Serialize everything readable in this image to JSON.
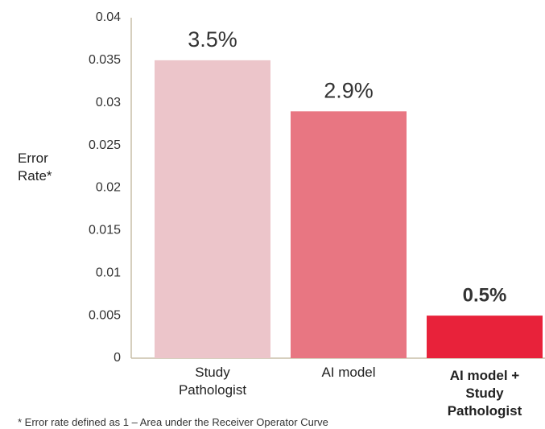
{
  "chart_data": {
    "type": "bar",
    "y_label": "Error Rate*",
    "footnote": "* Error rate defined as 1 – Area under the Receiver Operator Curve",
    "categories": [
      "Study Pathologist",
      "AI model",
      "AI model + Study Pathologist"
    ],
    "values": [
      0.035,
      0.029,
      0.005
    ],
    "value_labels": [
      "3.5%",
      "2.9%",
      "0.5%"
    ],
    "colors": [
      "#ecc5ca",
      "#e87682",
      "#e8223a"
    ],
    "bold": [
      false,
      false,
      true
    ],
    "ylim": [
      0,
      0.04
    ],
    "yticks": [
      0,
      0.005,
      0.01,
      0.015,
      0.02,
      0.025,
      0.03,
      0.035,
      0.04
    ],
    "grid": false
  }
}
